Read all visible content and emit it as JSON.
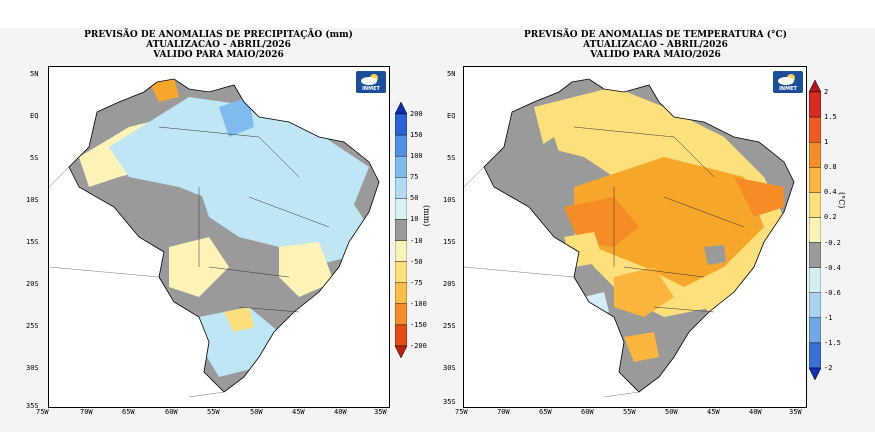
{
  "left": {
    "title_lines": [
      "PREVISÃO DE ANOMALIAS DE PRECIPITAÇÃO (mm)",
      "ATUALIZACAO - ABRIL/2026",
      "VALIDO PARA MAIO/2026"
    ],
    "unit": "(mm)",
    "colorbar_labels": [
      "200",
      "150",
      "100",
      "75",
      "50",
      "10",
      "-10",
      "-50",
      "-75",
      "-100",
      "-150",
      "-200"
    ],
    "colorbar_colors": [
      "#0b2fb0",
      "#2a63d8",
      "#4e92e6",
      "#7fbbef",
      "#b0dbf2",
      "#d8f0f7",
      "#9a9a9a",
      "#fdf3b6",
      "#fde07a",
      "#fbbd45",
      "#f68c2a",
      "#e64b14",
      "#c0200b"
    ],
    "logo_text": "INMET"
  },
  "right": {
    "title_lines": [
      "PREVISÃO DE ANOMALIAS DE TEMPERATURA (°C)",
      "ATUALIZACAO - ABRIL/2026",
      "VALIDO PARA MAIO/2026"
    ],
    "unit": "(°C)",
    "colorbar_labels": [
      "2",
      "1.5",
      "1",
      "0.8",
      "0.4",
      "0.2",
      "-0.2",
      "-0.4",
      "-0.6",
      "-1",
      "-1.5",
      "-2"
    ],
    "colorbar_colors": [
      "#b4161b",
      "#d92a20",
      "#f05a22",
      "#f68c26",
      "#fbb53c",
      "#fde07a",
      "#fdf3b6",
      "#9a9a9a",
      "#d4eef5",
      "#a8d4ef",
      "#6fa8e6",
      "#3a6fd8",
      "#1030b8"
    ],
    "logo_text": "INMET"
  },
  "lat_labels": [
    "5N",
    "EQ",
    "5S",
    "10S",
    "15S",
    "20S",
    "25S",
    "30S",
    "35S"
  ],
  "lon_labels": [
    "75W",
    "70W",
    "65W",
    "60W",
    "55W",
    "50W",
    "45W",
    "40W",
    "35W"
  ],
  "colors": {
    "gray": "#9a9a9a",
    "pale_yellow": "#fdf3b6",
    "light_blue": "#bfe6f4",
    "orange": "#f6a629",
    "yellow": "#fde07a"
  }
}
